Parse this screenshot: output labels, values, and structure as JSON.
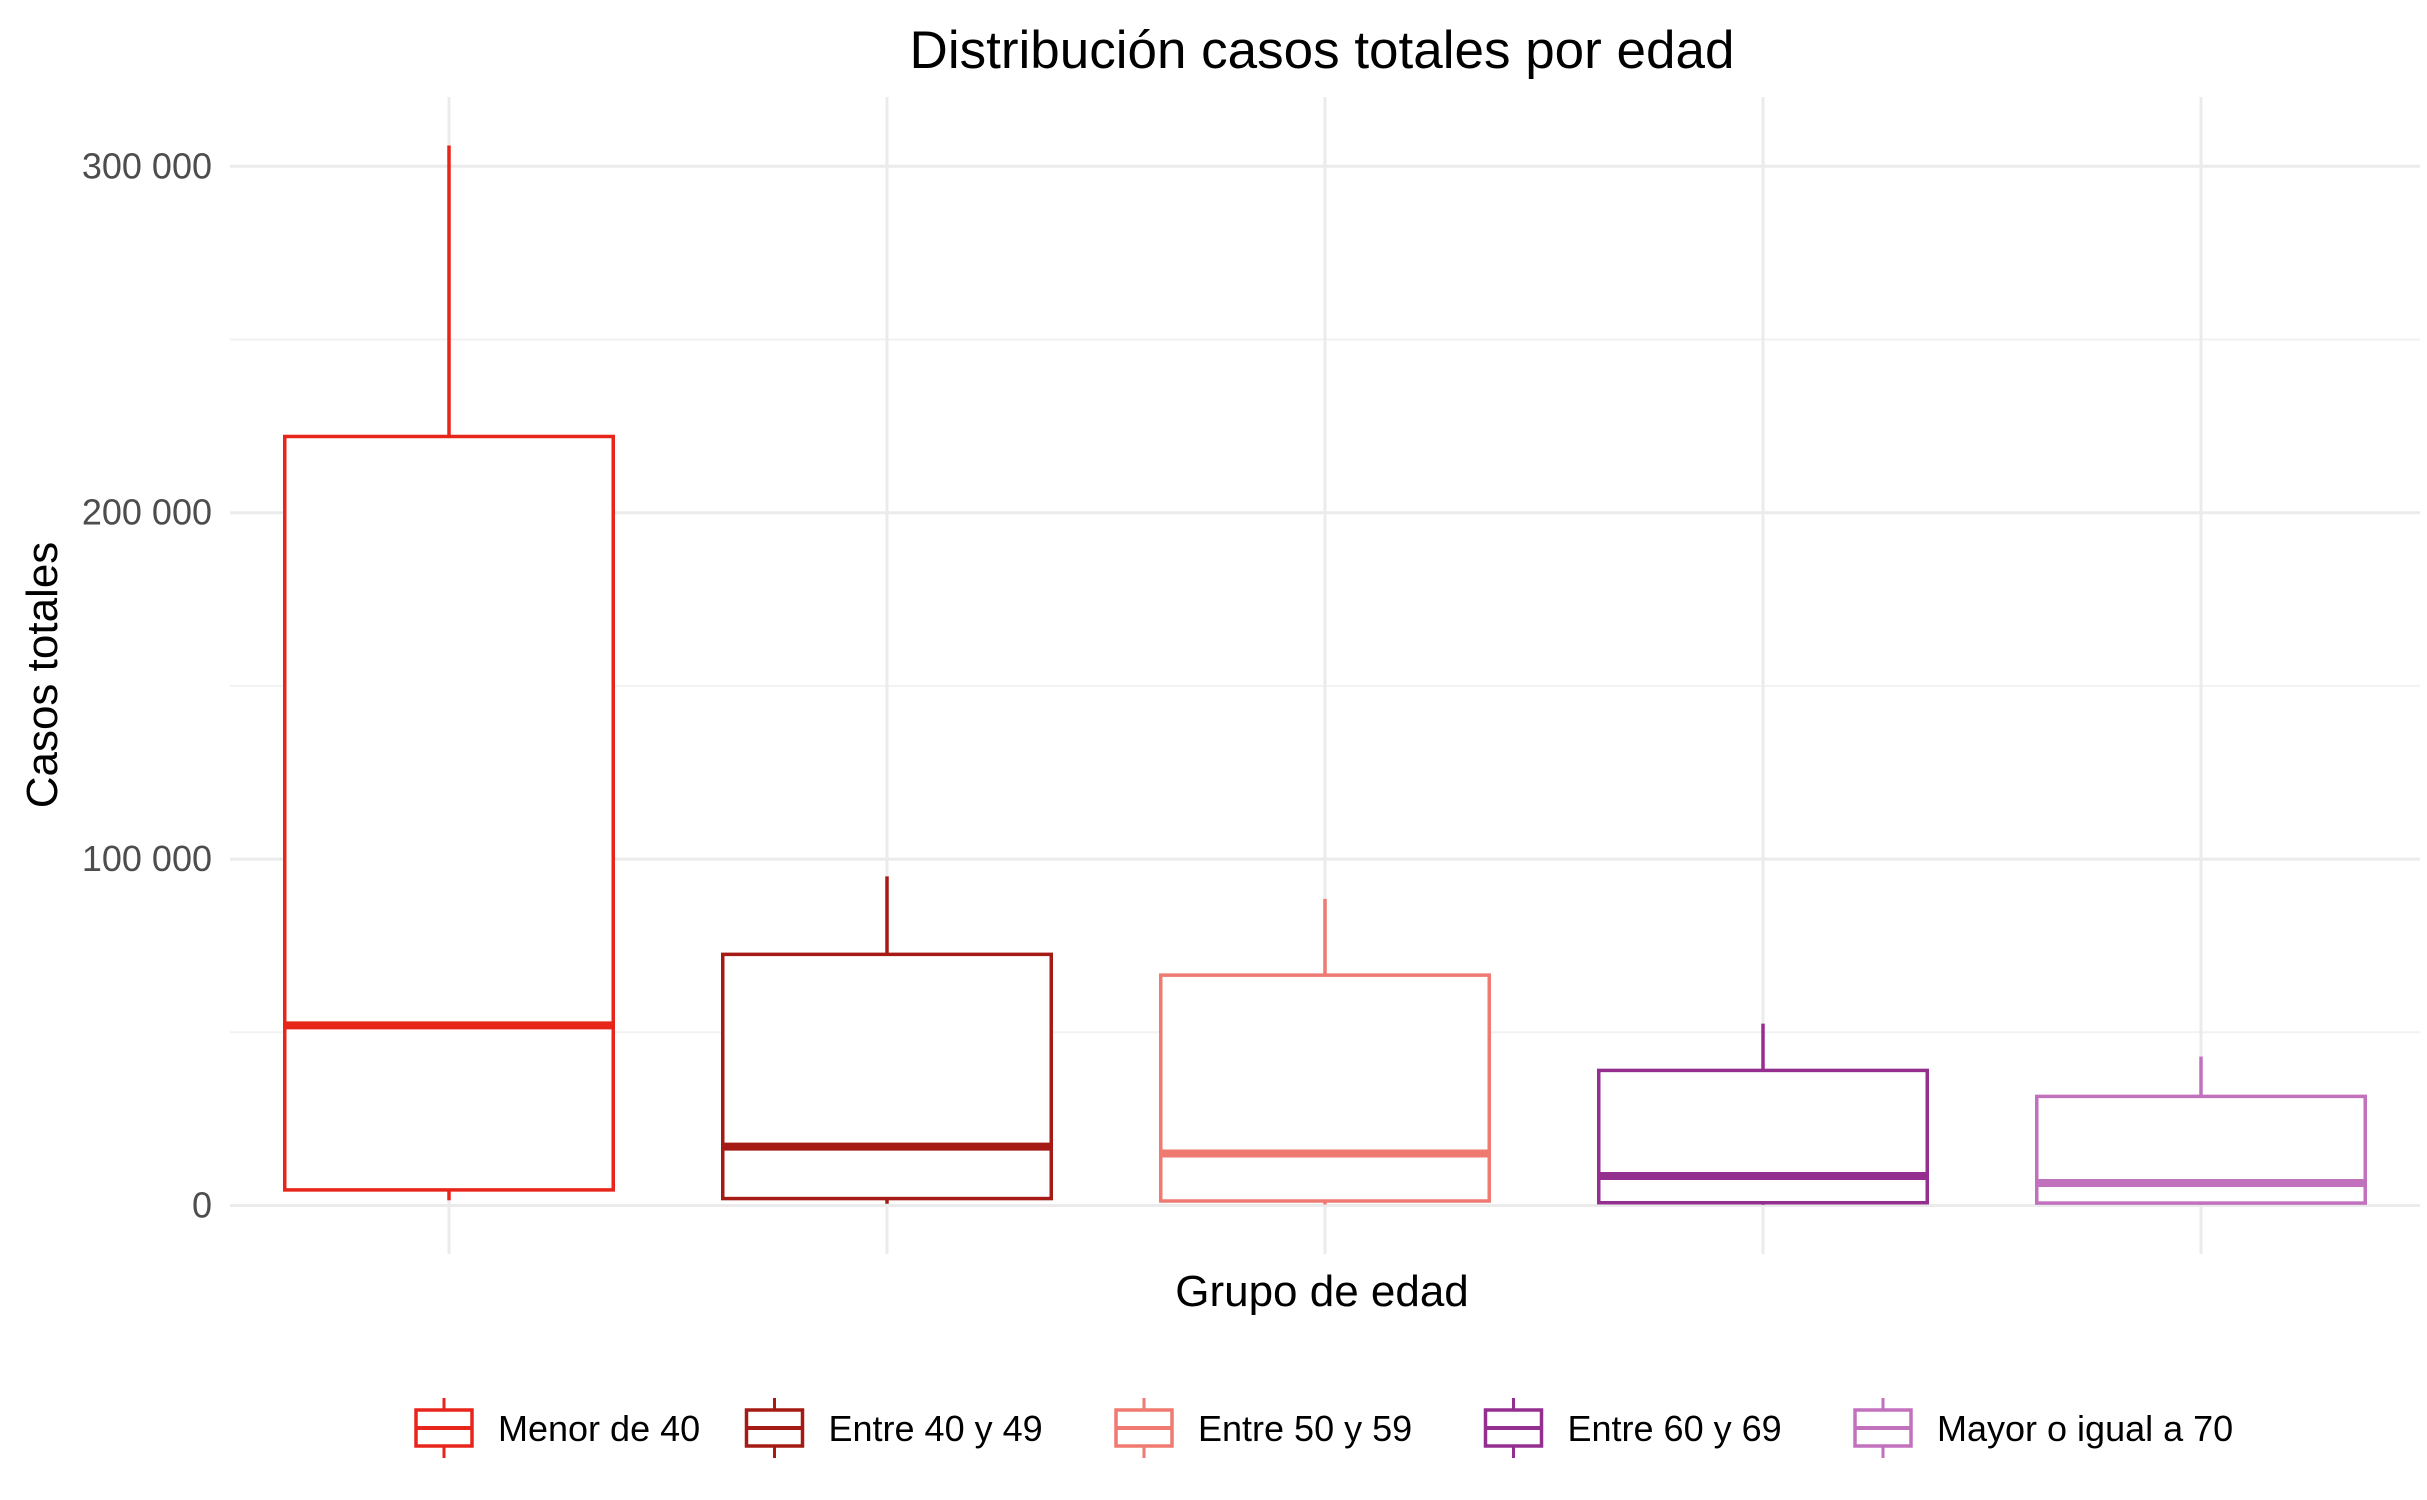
{
  "chart_data": {
    "type": "box",
    "title": "Distribución casos totales por edad",
    "xlabel": "Grupo de edad",
    "ylabel": "Casos totales",
    "ylim": [
      -14000,
      320000
    ],
    "yticks": [
      0,
      100000,
      200000,
      300000
    ],
    "ytick_labels": [
      "0",
      "100 000",
      "200 000",
      "300 000"
    ],
    "grid": true,
    "legend_position": "bottom",
    "series": [
      {
        "name": "Menor de 40",
        "color": "#e8251b",
        "min": 1500,
        "q1": 4500,
        "median": 52000,
        "q3": 222000,
        "max": 306000
      },
      {
        "name": "Entre 40 y 49",
        "color": "#a51a14",
        "min": 500,
        "q1": 2000,
        "median": 17000,
        "q3": 72500,
        "max": 95000
      },
      {
        "name": "Entre 50 y 59",
        "color": "#ee7a72",
        "min": 300,
        "q1": 1300,
        "median": 15000,
        "q3": 66500,
        "max": 88500
      },
      {
        "name": "Entre 60 y 69",
        "color": "#952f8f",
        "min": 200,
        "q1": 800,
        "median": 8500,
        "q3": 39000,
        "max": 52500
      },
      {
        "name": "Mayor o igual a 70",
        "color": "#c271bd",
        "min": 200,
        "q1": 700,
        "median": 6500,
        "q3": 31500,
        "max": 43000
      }
    ]
  }
}
